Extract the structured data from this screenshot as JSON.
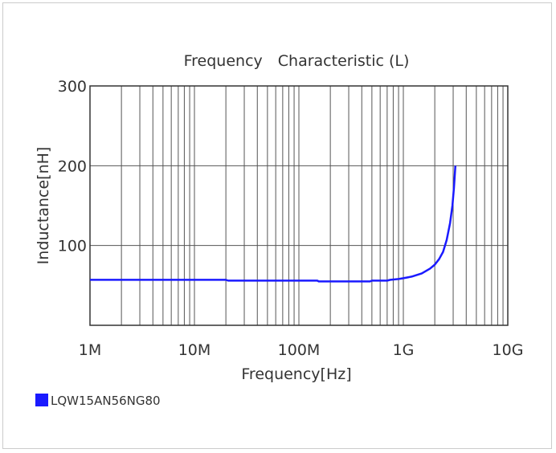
{
  "chart_data": {
    "type": "line",
    "title": "Frequency　Characteristic (L)",
    "xlabel": "Frequency[Hz]",
    "ylabel": "Inductance[nH]",
    "x_scale": "log",
    "xlim": [
      1000000,
      10000000000
    ],
    "ylim": [
      0,
      300
    ],
    "x_ticks": [
      {
        "value": 1000000,
        "label": "1M"
      },
      {
        "value": 10000000,
        "label": "10M"
      },
      {
        "value": 100000000,
        "label": "100M"
      },
      {
        "value": 1000000000,
        "label": "1G"
      },
      {
        "value": 10000000000,
        "label": "10G"
      }
    ],
    "y_ticks": [
      {
        "value": 100,
        "label": "100"
      },
      {
        "value": 200,
        "label": "200"
      },
      {
        "value": 300,
        "label": "300"
      }
    ],
    "grid": true,
    "legend": {
      "placement": "bottom-left"
    },
    "series": [
      {
        "name": "LQW15AN56NG80",
        "color": "#1a1aff",
        "x": [
          1000000,
          2000000,
          5000000,
          10000000,
          20000000,
          21000000,
          50000000,
          100000000,
          150000000,
          155000000,
          300000000,
          480000000,
          500000000,
          700000000,
          750000000,
          900000000,
          1000000000,
          1200000000,
          1500000000,
          1800000000,
          2000000000,
          2200000000,
          2400000000,
          2600000000,
          2800000000,
          2950000000,
          3050000000,
          3150000000
        ],
        "y": [
          57,
          57,
          57,
          57,
          57,
          56,
          56,
          56,
          56,
          55,
          55,
          55,
          56,
          56,
          57,
          58,
          59,
          61,
          65,
          71,
          76,
          83,
          92,
          107,
          128,
          150,
          172,
          200
        ]
      }
    ]
  }
}
